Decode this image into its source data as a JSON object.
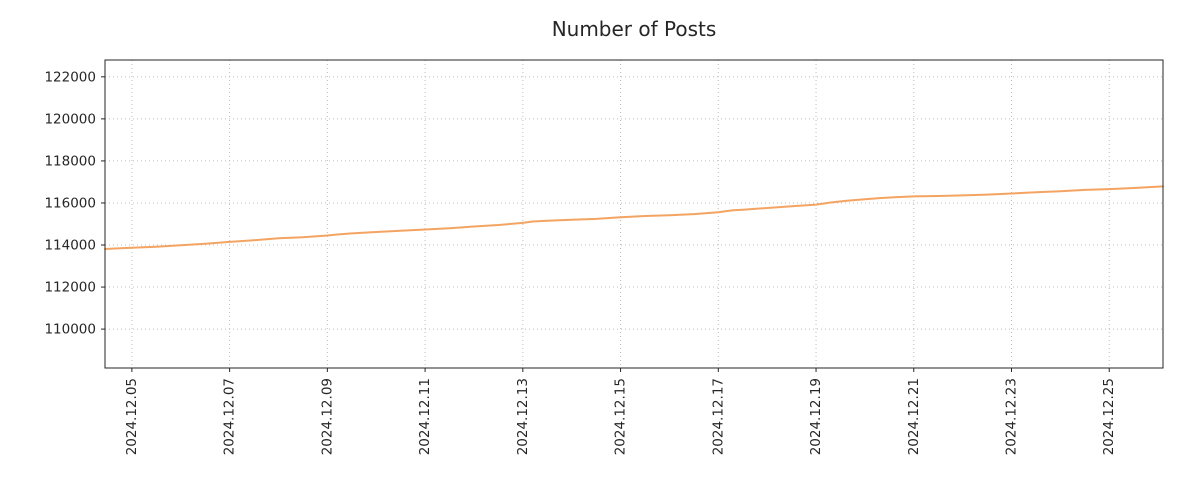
{
  "chart_data": {
    "type": "line",
    "title": "Number of Posts",
    "xlabel": "",
    "ylabel": "",
    "legend": "none",
    "grid": {
      "show": true,
      "line_style": "dotted",
      "color": "#bcbcbc"
    },
    "axis_color": "#262626",
    "tick_label_color": "#262626",
    "xlim_days": [
      4.45,
      26.1
    ],
    "ylim": [
      108150,
      122800
    ],
    "y_ticks": [
      110000,
      112000,
      114000,
      116000,
      118000,
      120000,
      122000
    ],
    "x_ticks": [
      {
        "day": 5,
        "label": "2024.12.05"
      },
      {
        "day": 7,
        "label": "2024.12.07"
      },
      {
        "day": 9,
        "label": "2024.12.09"
      },
      {
        "day": 11,
        "label": "2024.12.11"
      },
      {
        "day": 13,
        "label": "2024.12.13"
      },
      {
        "day": 15,
        "label": "2024.12.15"
      },
      {
        "day": 17,
        "label": "2024.12.17"
      },
      {
        "day": 19,
        "label": "2024.12.19"
      },
      {
        "day": 21,
        "label": "2024.12.21"
      },
      {
        "day": 23,
        "label": "2024.12.23"
      },
      {
        "day": 25,
        "label": "2024.12.25"
      }
    ],
    "series": [
      {
        "name": "Number of Posts",
        "color": "#f4a462",
        "line_width": 2,
        "x_days": [
          4.45,
          5.0,
          5.5,
          6.0,
          6.5,
          7.0,
          7.5,
          8.0,
          8.5,
          9.0,
          9.2,
          9.5,
          10.0,
          10.5,
          11.0,
          11.5,
          12.0,
          12.5,
          13.0,
          13.2,
          13.5,
          14.0,
          14.5,
          15.0,
          15.5,
          16.0,
          16.5,
          17.0,
          17.3,
          17.5,
          18.0,
          18.5,
          19.0,
          19.3,
          19.6,
          20.0,
          20.3,
          20.6,
          21.0,
          21.5,
          22.0,
          22.5,
          23.0,
          23.5,
          24.0,
          24.5,
          25.0,
          25.5,
          26.1
        ],
        "values": [
          113810,
          113870,
          113920,
          113990,
          114060,
          114150,
          114230,
          114320,
          114370,
          114450,
          114500,
          114550,
          114620,
          114680,
          114740,
          114800,
          114880,
          114950,
          115050,
          115120,
          115150,
          115200,
          115240,
          115320,
          115380,
          115420,
          115470,
          115560,
          115650,
          115680,
          115760,
          115840,
          115920,
          116020,
          116100,
          116180,
          116230,
          116270,
          116310,
          116330,
          116360,
          116400,
          116450,
          116510,
          116560,
          116620,
          116660,
          116710,
          116790
        ]
      }
    ]
  }
}
